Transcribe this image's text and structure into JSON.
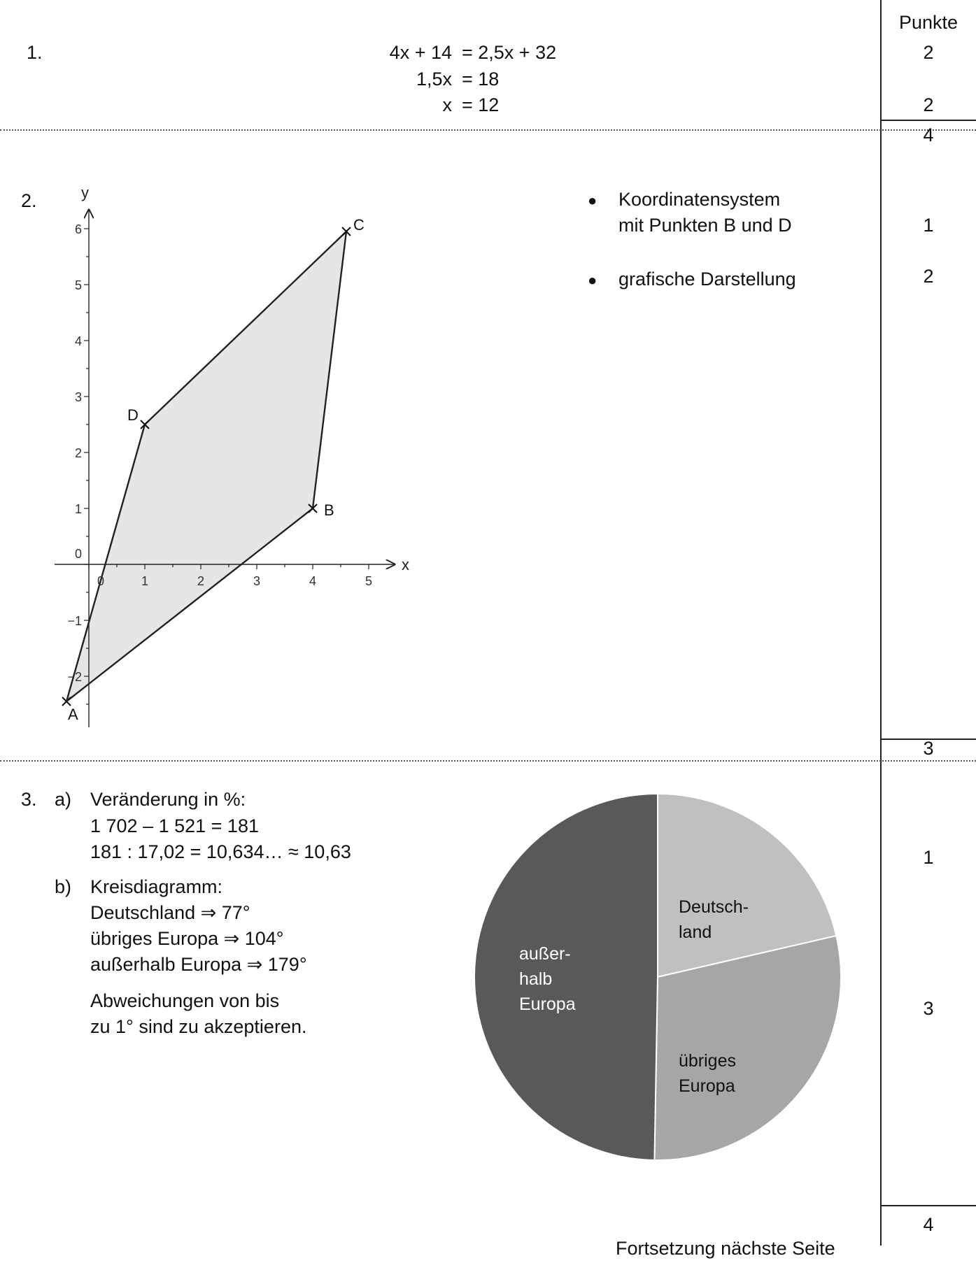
{
  "header": {
    "points_label": "Punkte"
  },
  "task1": {
    "number": "1.",
    "lines": [
      {
        "lhs": "4x + 14",
        "rhs": "= 2,5x + 32"
      },
      {
        "lhs": "1,5x",
        "rhs": "= 18"
      },
      {
        "lhs": "x",
        "rhs": "= 12"
      }
    ],
    "points": [
      "2",
      "2"
    ],
    "total": "4"
  },
  "task2": {
    "number": "2.",
    "bullets": [
      {
        "line1": "Koordinatensystem",
        "line2": "mit Punkten B und D",
        "points": "1"
      },
      {
        "line1": "grafische Darstellung",
        "line2": "",
        "points": "2"
      }
    ],
    "total": "3",
    "graph": {
      "x_axis_label": "x",
      "y_axis_label": "y",
      "x_ticks": [
        "0",
        "1",
        "2",
        "3",
        "4",
        "5"
      ],
      "y_ticks": [
        "6",
        "5",
        "4",
        "3",
        "2",
        "1",
        "0",
        "−1",
        "−2"
      ],
      "points": [
        {
          "label": "A",
          "x": -0.4,
          "y": -2.45
        },
        {
          "label": "B",
          "x": 4,
          "y": 1
        },
        {
          "label": "C",
          "x": 4.6,
          "y": 5.95
        },
        {
          "label": "D",
          "x": 1,
          "y": 2.5
        }
      ],
      "fill_color": "#e6e6e6"
    }
  },
  "task3": {
    "number": "3.",
    "a": {
      "label": "a)",
      "lines": [
        "Veränderung in %:",
        "1 702 – 1 521 = 181",
        "181 : 17,02 = 10,634… ≈ 10,63"
      ],
      "points": "1"
    },
    "b": {
      "label": "b)",
      "lines": [
        "Kreisdiagramm:",
        "Deutschland ⇒ 77°",
        "übriges Europa ⇒ 104°",
        "außerhalb Europa ⇒ 179°"
      ],
      "note": [
        "Abweichungen von bis",
        "zu 1° sind zu akzeptieren."
      ],
      "points": "3"
    },
    "total": "4"
  },
  "chart_data": {
    "type": "pie",
    "slices": [
      {
        "label": "Deutsch-\nland",
        "value": 77,
        "color": "#c0c0c0"
      },
      {
        "label": "übriges\nEuropa",
        "value": 104,
        "color": "#a6a6a6"
      },
      {
        "label": "außer-\nhalb\nEuropa",
        "value": 179,
        "color": "#595959"
      }
    ],
    "unit": "°"
  },
  "footer": {
    "continuation": "Fortsetzung nächste Seite"
  }
}
